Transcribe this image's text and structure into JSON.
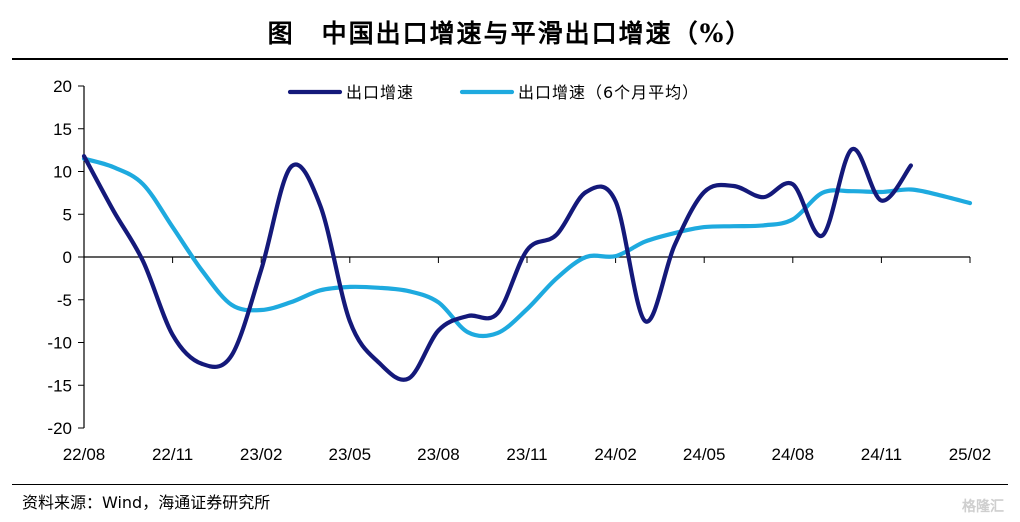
{
  "header": {
    "title": "图　中国出口增速与平滑出口增速（%）"
  },
  "footer": {
    "source": "资料来源：Wind，海通证券研究所",
    "watermark": "格隆汇"
  },
  "chart_data": {
    "type": "line",
    "title": "图　中国出口增速与平滑出口增速（%）",
    "xlabel": "",
    "ylabel": "",
    "ylim": [
      -20,
      20
    ],
    "yticks": [
      20,
      15,
      10,
      5,
      0,
      -5,
      -10,
      -15,
      -20
    ],
    "x": [
      "22/08",
      "22/09",
      "22/10",
      "22/11",
      "22/12",
      "23/01",
      "23/02",
      "23/03",
      "23/04",
      "23/05",
      "23/06",
      "23/07",
      "23/08",
      "23/09",
      "23/10",
      "23/11",
      "23/12",
      "24/01",
      "24/02",
      "24/03",
      "24/04",
      "24/05",
      "24/06",
      "24/07",
      "24/08",
      "24/09",
      "24/10",
      "24/11",
      "24/12",
      "25/01",
      "25/02"
    ],
    "xtick_labels": [
      "22/08",
      "22/11",
      "23/02",
      "23/05",
      "23/08",
      "23/11",
      "24/02",
      "24/05",
      "24/08",
      "24/11",
      "25/02"
    ],
    "legend_position": "top-center",
    "series": [
      {
        "name": "出口增速",
        "color": "#14197a",
        "values": [
          11.8,
          5.4,
          -0.5,
          -9.1,
          -12.5,
          -11.5,
          -1.5,
          10.5,
          6.0,
          -7.5,
          -12.4,
          -14.2,
          -8.6,
          -6.9,
          -6.6,
          0.8,
          2.6,
          7.6,
          6.5,
          -7.5,
          1.4,
          7.6,
          8.3,
          7.0,
          8.5,
          2.5,
          12.6,
          6.6,
          10.7,
          null,
          null
        ]
      },
      {
        "name": "出口增速（6个月平均）",
        "color": "#1eaadf",
        "values": [
          11.5,
          10.5,
          8.5,
          3.5,
          -1.6,
          -5.6,
          -6.2,
          -5.3,
          -3.9,
          -3.5,
          -3.6,
          -4.0,
          -5.3,
          -8.8,
          -8.9,
          -6.1,
          -2.5,
          0.0,
          0.1,
          1.8,
          2.8,
          3.5,
          3.6,
          3.7,
          4.4,
          7.5,
          7.7,
          7.6,
          7.9,
          7.2,
          6.3
        ]
      }
    ]
  }
}
